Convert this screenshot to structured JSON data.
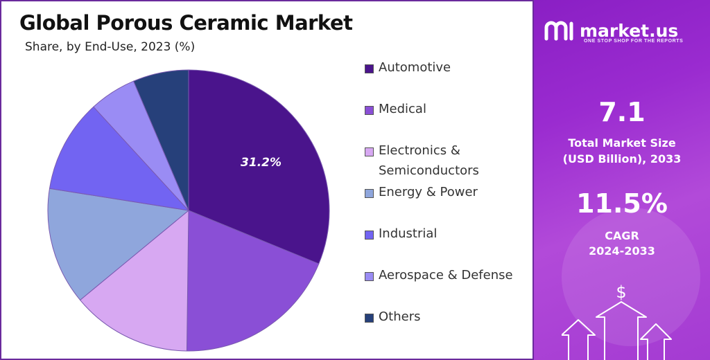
{
  "chart_data": {
    "type": "pie",
    "title": "Global Porous Ceramic Market",
    "subtitle": "Share, by End-Use, 2023 (%)",
    "categories": [
      "Automotive",
      "Medical",
      "Electronics & Semiconductors",
      "Energy & Power",
      "Industrial",
      "Aerospace & Defense",
      "Others"
    ],
    "values": [
      31.2,
      19.0,
      13.8,
      13.5,
      10.7,
      5.4,
      6.4
    ],
    "data_labels": [
      "31.2%",
      "",
      "",
      "",
      "",
      "",
      ""
    ],
    "colors": [
      "#4a148c",
      "#8a4fd6",
      "#d7a8f2",
      "#8fa6dc",
      "#7264f2",
      "#9a8cf4",
      "#26407a"
    ],
    "start_angle_deg": 0,
    "legend_position": "right"
  },
  "legend": {
    "items": [
      {
        "label_lines": [
          "Automotive"
        ],
        "color": "#4a148c"
      },
      {
        "label_lines": [
          "Medical"
        ],
        "color": "#8a4fd6"
      },
      {
        "label_lines": [
          "Electronics &",
          "Semiconductors"
        ],
        "color": "#d7a8f2"
      },
      {
        "label_lines": [
          "Energy & Power"
        ],
        "color": "#8fa6dc"
      },
      {
        "label_lines": [
          "Industrial"
        ],
        "color": "#7264f2"
      },
      {
        "label_lines": [
          "Aerospace & Defense"
        ],
        "color": "#9a8cf4"
      },
      {
        "label_lines": [
          "Others"
        ],
        "color": "#26407a"
      }
    ]
  },
  "sidebar": {
    "brand": "market.us",
    "tagline": "ONE STOP SHOP FOR THE REPORTS",
    "market_size_value": "7.1",
    "market_size_label_1": "Total Market Size",
    "market_size_label_2": "(USD Billion), 2033",
    "cagr_value": "11.5%",
    "cagr_label_1": "CAGR",
    "cagr_label_2": "2024-2033",
    "dollar_symbol": "$",
    "logo_icon": "market-us-logo-icon",
    "arrows_icon": "growth-arrows-icon"
  }
}
